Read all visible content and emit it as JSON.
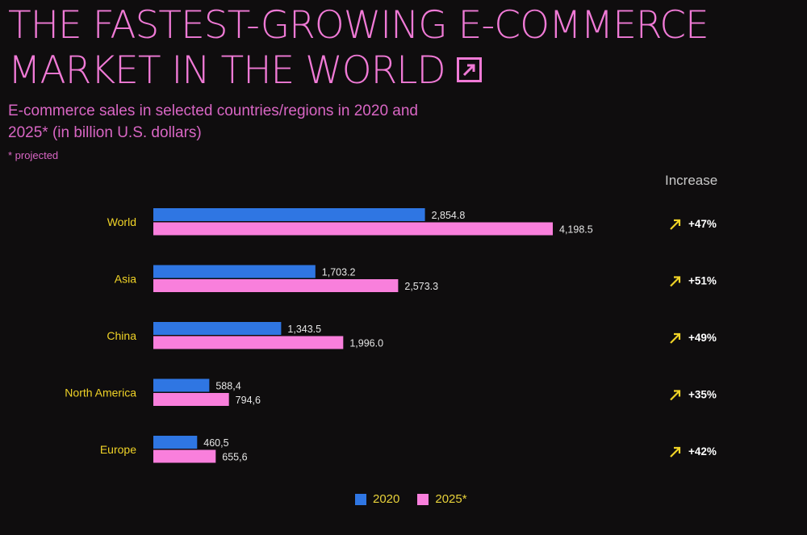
{
  "title_lines": [
    "THE FASTEST-GROWING E-COMMERCE",
    "MARKET IN THE WORLD"
  ],
  "subtitle": "E-commerce sales in selected countries/regions in 2020 and 2025* (in billion U.S. dollars)",
  "note": "* projected",
  "increase_header": "Increase",
  "colors": {
    "bg": "#0f0d0e",
    "s2020": "#2f76e3",
    "s2025": "#f97fdc",
    "accent": "#f0d327",
    "title": "#f07ad6"
  },
  "icons": {
    "title_arrow": "arrow-up-right-icon",
    "increase_arrow": "arrow-up-right-icon"
  },
  "chart_data": {
    "type": "bar",
    "orientation": "horizontal",
    "categories": [
      "World",
      "Asia",
      "China",
      "North America",
      "Europe"
    ],
    "series": [
      {
        "name": "2020",
        "values": [
          2854.8,
          1703.2,
          1343.5,
          588.4,
          460.5
        ],
        "labels": [
          "2,854.8",
          "1,703.2",
          "1,343.5",
          "588,4",
          "460,5"
        ]
      },
      {
        "name": "2025*",
        "values": [
          4198.5,
          2573.3,
          1996.0,
          794.6,
          655.6
        ],
        "labels": [
          "4,198.5",
          "2,573.3",
          "1,996.0",
          "794,6",
          "655,6"
        ]
      }
    ],
    "increase": [
      "+47%",
      "+51%",
      "+49%",
      "+35%",
      "+42%"
    ],
    "legend": "bottom-center",
    "grid": false
  }
}
